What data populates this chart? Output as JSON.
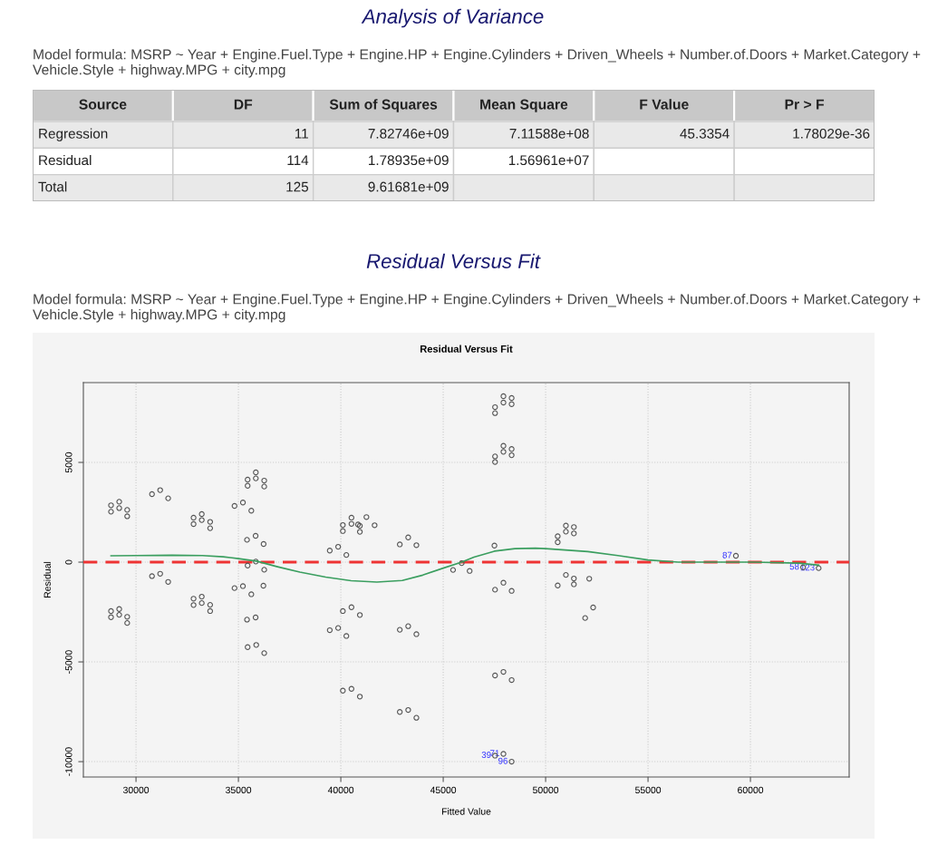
{
  "chart_data": [
    {
      "type": "other",
      "title": "Analysis of Variance",
      "subtitle": "Model formula: MSRP ~ Year + Engine.Fuel.Type + Engine.HP + Engine.Cylinders + Driven_Wheels + Number.of.Doors + Market.Category + Vehicle.Style + highway.MPG + city.mpg",
      "categories": [
        "Source",
        "DF",
        "Sum of Squares",
        "Mean Square",
        "F Value",
        "Pr > F"
      ],
      "cell_labels": [
        [
          "Regression",
          "11",
          "7.82746e+09",
          "7.11588e+08",
          "45.3354",
          "1.78029e-36"
        ],
        [
          "Residual",
          "114",
          "1.78935e+09",
          "1.56961e+07",
          null,
          null
        ],
        [
          "Total",
          "125",
          "9.61681e+09",
          null,
          null,
          null
        ]
      ]
    },
    {
      "type": "scatter",
      "title": "Residual Versus Fit",
      "subtitle": "Model formula: MSRP ~ Year + Engine.Fuel.Type + Engine.HP + Engine.Cylinders + Driven_Wheels + Number.of.Doors + Market.Category + Vehicle.Style + highway.MPG + city.mpg",
      "xlabel": "Fitted Value",
      "ylabel": "Residual",
      "xlim": [
        27430,
        64820
      ],
      "ylim": [
        -10770,
        9000
      ],
      "xticks": [
        30000,
        35000,
        40000,
        45000,
        50000,
        55000,
        60000
      ],
      "yticks": [
        -10000,
        -5000,
        0,
        5000
      ],
      "grid": true,
      "ref_lines": [
        {
          "axis": "y",
          "value": 0,
          "color": "#ee3333",
          "line_style": "dashed"
        }
      ],
      "annotations": [
        "Residual Versus Fit",
        {
          "text": "87",
          "x": 59290,
          "y": 318
        },
        {
          "text": "58",
          "x": 62570,
          "y": -258
        },
        {
          "text": "123",
          "x": 63330,
          "y": -303
        },
        {
          "text": "39",
          "x": 47530,
          "y": -9696
        },
        {
          "text": "71",
          "x": 47940,
          "y": -9605
        },
        {
          "text": "96",
          "x": 48340,
          "y": -9999
        }
      ],
      "series": [
        {
          "type": "scatter",
          "color": "#555555",
          "marker": "circle",
          "x": [
            28780,
            29180,
            28780,
            29180,
            29570,
            29570,
            28780,
            29180,
            28780,
            29180,
            29570,
            29570,
            30780,
            31180,
            31570,
            30780,
            31180,
            31570,
            32810,
            33210,
            32810,
            33210,
            33620,
            33620,
            32810,
            33210,
            32810,
            33210,
            33620,
            33620,
            34810,
            35220,
            35630,
            35450,
            35850,
            35450,
            35850,
            36260,
            36260,
            35420,
            35840,
            36230,
            35450,
            35850,
            36260,
            34810,
            35220,
            35630,
            36220,
            35420,
            35840,
            35450,
            35870,
            36260,
            39460,
            39870,
            40270,
            40100,
            40520,
            40100,
            40520,
            40840,
            40930,
            40930,
            41250,
            41650,
            39460,
            39870,
            40270,
            40100,
            40520,
            40930,
            40100,
            40520,
            40930,
            42880,
            43290,
            43690,
            42880,
            43290,
            43690,
            42880,
            43290,
            43690,
            45480,
            45900,
            46290,
            47500,
            47530,
            47940,
            48340,
            47530,
            47940,
            48340,
            47530,
            47940,
            48340,
            47530,
            47940,
            48340,
            47530,
            47940,
            48340,
            47530,
            47940,
            48340,
            47530,
            47940,
            48340,
            50590,
            50590,
            50990,
            50990,
            51380,
            51380,
            50590,
            50990,
            51380,
            51380,
            52130,
            51930,
            52320,
            59290,
            62570,
            63330
          ],
          "values": [
            2850,
            3030,
            2530,
            2710,
            2620,
            2300,
            -2450,
            -2350,
            -2760,
            -2640,
            -2740,
            -3050,
            3410,
            3610,
            3200,
            -700,
            -580,
            -990,
            2230,
            2410,
            1910,
            2110,
            2020,
            1700,
            -1830,
            -1730,
            -2150,
            -2050,
            -2140,
            -2450,
            2820,
            2990,
            2580,
            4140,
            4500,
            3830,
            4200,
            4090,
            3790,
            1120,
            1320,
            910,
            -170,
            30,
            -380,
            -1300,
            -1200,
            -1610,
            -1180,
            -2880,
            -2770,
            -4260,
            -4150,
            -4560,
            580,
            770,
            360,
            1860,
            2230,
            1560,
            1920,
            1890,
            1820,
            1520,
            2260,
            1850,
            -3410,
            -3300,
            -3700,
            -2450,
            -2260,
            -2650,
            -6440,
            -6350,
            -6740,
            890,
            1240,
            850,
            -3390,
            -3210,
            -3610,
            -7510,
            -7410,
            -7800,
            -390,
            -50,
            -440,
            830,
            -1380,
            -1030,
            -1440,
            7770,
            8320,
            8230,
            7470,
            8000,
            7920,
            5300,
            5830,
            5670,
            5020,
            5530,
            5360,
            -5680,
            -5500,
            -5910,
            -9700,
            -9610,
            -10000,
            1300,
            1000,
            1830,
            1530,
            1760,
            1440,
            -1170,
            -640,
            -820,
            -1110,
            -830,
            -2800,
            -2270,
            320,
            -260,
            -300
          ]
        },
        {
          "type": "line",
          "color": "#3a9e5f",
          "x": [
            28780,
            30000,
            31760,
            33240,
            34260,
            35000,
            35880,
            36910,
            38000,
            39260,
            40500,
            41760,
            43000,
            44000,
            45000,
            45900,
            46500,
            47500,
            48500,
            49500,
            50000,
            52060,
            53530,
            55000,
            56470,
            57940,
            60140,
            62350,
            63330
          ],
          "values": [
            320,
            330,
            350,
            330,
            270,
            180,
            50,
            -230,
            -500,
            -750,
            -930,
            -1000,
            -920,
            -650,
            -300,
            0,
            250,
            550,
            680,
            700,
            680,
            530,
            330,
            110,
            0,
            0,
            0,
            -50,
            -150
          ]
        }
      ]
    }
  ]
}
